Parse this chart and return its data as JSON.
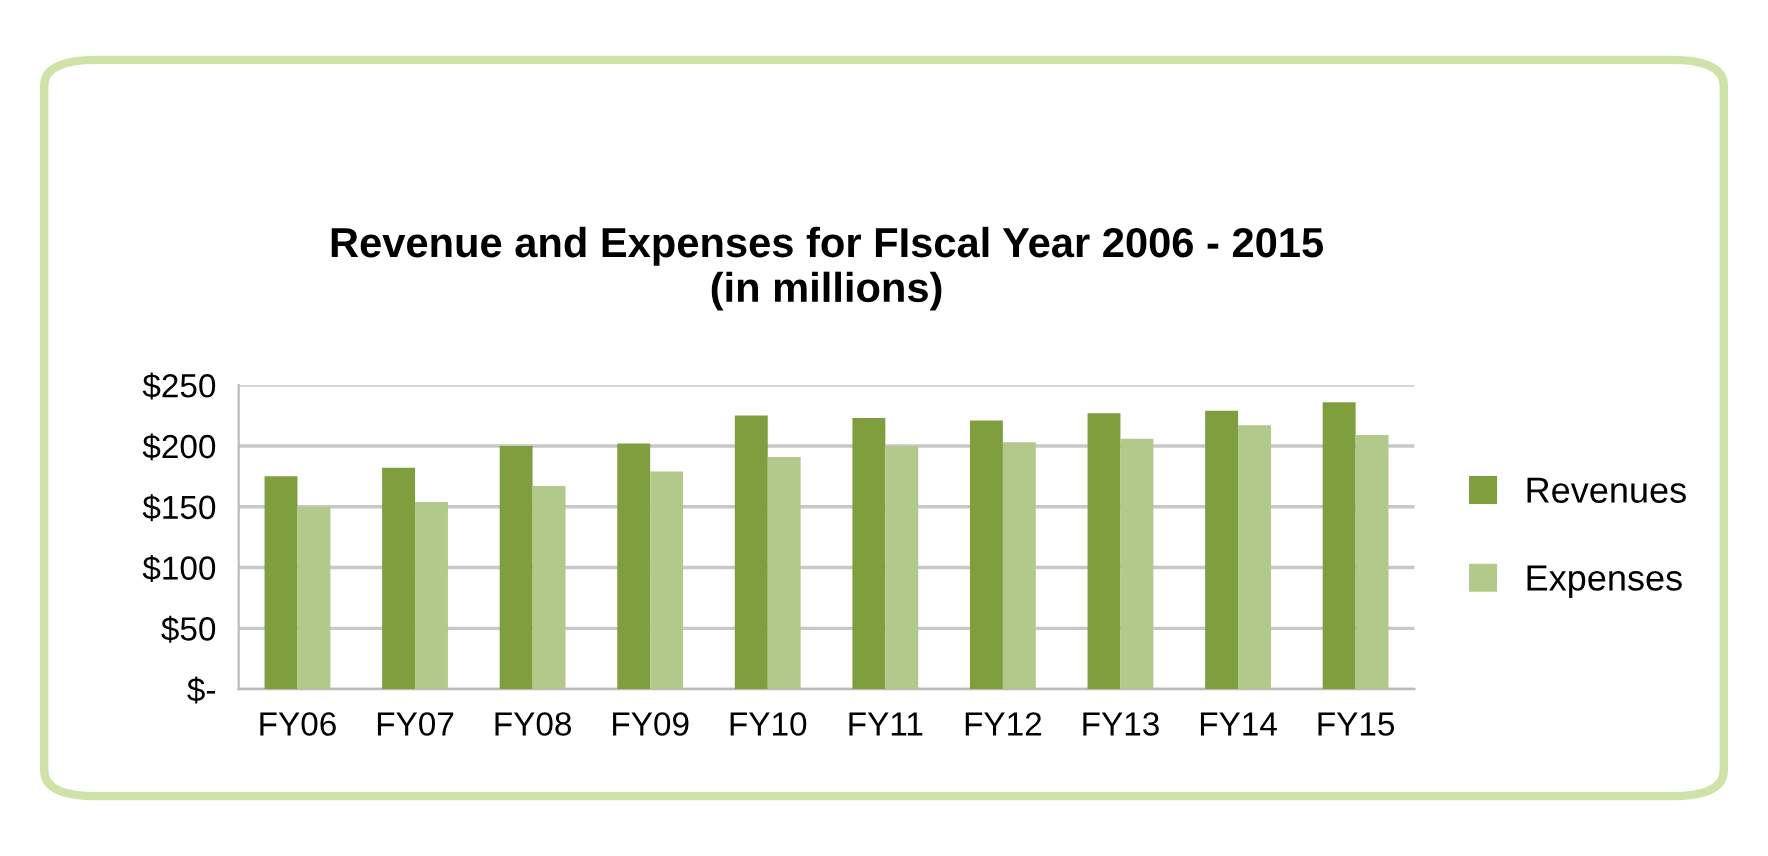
{
  "chart_data": {
    "type": "bar",
    "title": "Revenue and Expenses for FIscal Year 2006 - 2015\n(in millions)",
    "categories": [
      "FY06",
      "FY07",
      "FY08",
      "FY09",
      "FY10",
      "FY11",
      "FY12",
      "FY13",
      "FY14",
      "FY15"
    ],
    "series": [
      {
        "name": "Revenues",
        "color": "#7f9f3e",
        "values": [
          175,
          182,
          200,
          202,
          225,
          223,
          221,
          227,
          229,
          236
        ]
      },
      {
        "name": "Expenses",
        "color": "#b3c98c",
        "values": [
          150,
          154,
          167,
          179,
          191,
          200,
          203,
          206,
          217,
          209
        ]
      }
    ],
    "ylim": [
      0,
      250
    ],
    "yticks": [
      {
        "value": 0,
        "label": "$-"
      },
      {
        "value": 50,
        "label": "$50"
      },
      {
        "value": 100,
        "label": "$100"
      },
      {
        "value": 150,
        "label": "$150"
      },
      {
        "value": 200,
        "label": "$200"
      },
      {
        "value": 250,
        "label": "$250"
      }
    ],
    "grid": "y",
    "legend": "right"
  }
}
